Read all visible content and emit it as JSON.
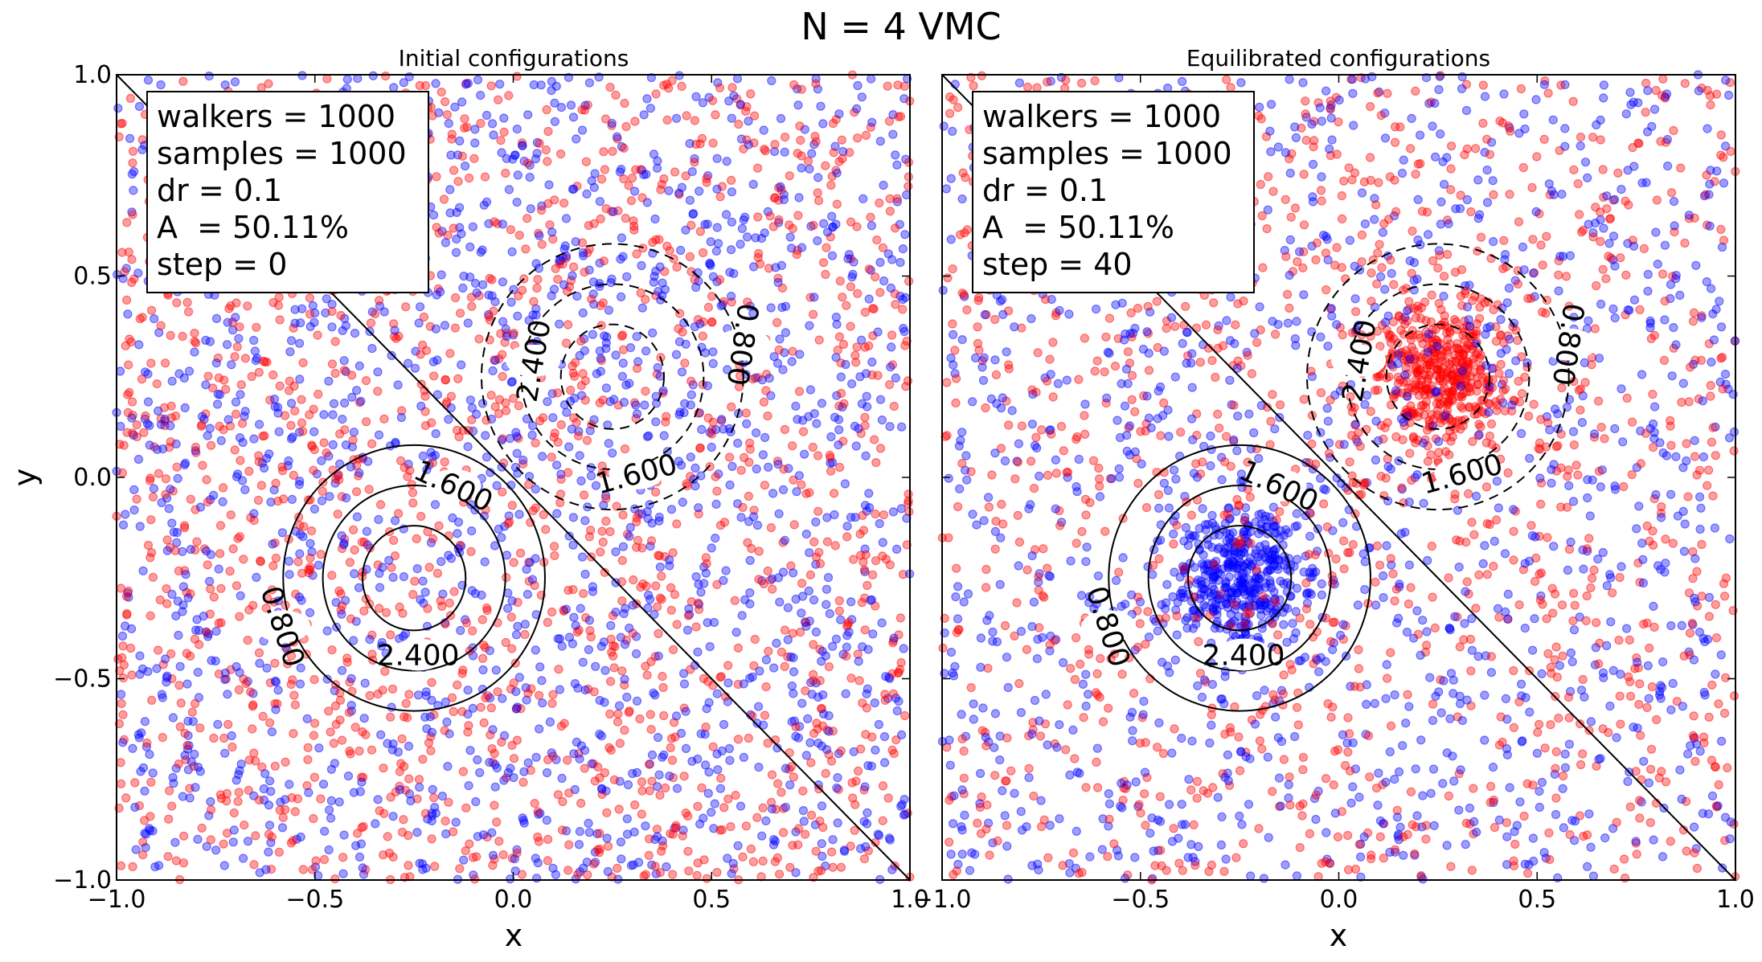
{
  "figure": {
    "title": "N = 4 VMC"
  },
  "chart_data": [
    {
      "type": "scatter",
      "title": "Initial configurations",
      "xlabel": "x",
      "ylabel": "y",
      "xlim": [
        -1.0,
        1.0
      ],
      "ylim": [
        -1.0,
        1.0
      ],
      "xticks": [
        "−1.0",
        "−0.5",
        "0.0",
        "0.5",
        "1.0"
      ],
      "yticks": [
        "−1.0",
        "−0.5",
        "0.0",
        "0.5",
        "1.0"
      ],
      "grid": false,
      "series": [
        {
          "color": "#ff0000",
          "distribution": "uniform over the square",
          "approx_points": 1700
        },
        {
          "color": "#0000ff",
          "distribution": "uniform over the square",
          "approx_points": 1700
        }
      ],
      "contours": {
        "center_solid": [
          -0.25,
          -0.25
        ],
        "center_dashed": [
          0.25,
          0.25
        ],
        "levels": [
          "0.800",
          "1.600",
          "2.400"
        ],
        "radii": [
          0.33,
          0.23,
          0.13
        ],
        "divider_line": [
          [
            -1.0,
            1.0
          ],
          [
            1.0,
            -1.0
          ]
        ]
      },
      "textbox": [
        "walkers = 1000",
        "samples = 1000",
        "dr = 0.1",
        "A  = 50.11%",
        "step = 0"
      ]
    },
    {
      "type": "scatter",
      "title": "Equilibrated configurations",
      "xlabel": "x",
      "ylabel": "",
      "xlim": [
        -1.0,
        1.0
      ],
      "ylim": [
        -1.0,
        1.0
      ],
      "xticks": [
        "−1.0",
        "−0.5",
        "0.0",
        "0.5",
        "1.0"
      ],
      "grid": false,
      "series": [
        {
          "color": "#ff0000",
          "distribution": "uniform background plus cluster around (0.25, 0.25)",
          "approx_points": 1700
        },
        {
          "color": "#0000ff",
          "distribution": "uniform background plus cluster around (-0.25, -0.25)",
          "approx_points": 1700
        }
      ],
      "contours": {
        "center_solid": [
          -0.25,
          -0.25
        ],
        "center_dashed": [
          0.25,
          0.25
        ],
        "levels": [
          "0.800",
          "1.600",
          "2.400"
        ],
        "radii": [
          0.33,
          0.23,
          0.13
        ],
        "divider_line": [
          [
            -1.0,
            1.0
          ],
          [
            1.0,
            -1.0
          ]
        ]
      },
      "textbox": [
        "walkers = 1000",
        "samples = 1000",
        "dr = 0.1",
        "A  = 50.11%",
        "step = 40"
      ]
    }
  ]
}
